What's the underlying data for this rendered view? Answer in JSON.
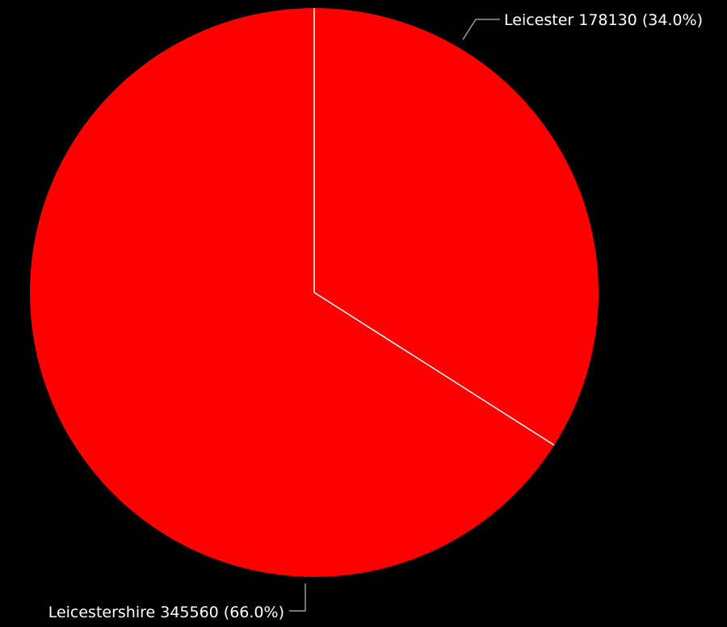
{
  "chart_data": {
    "type": "pie",
    "slices": [
      {
        "label": "Leicester",
        "value": 178130,
        "percent": 34.0,
        "display": "Leicester 178130 (34.0%)",
        "color": "#ff0000"
      },
      {
        "label": "Leicestershire",
        "value": 345560,
        "percent": 66.0,
        "display": "Leicestershire 345560 (66.0%)",
        "color": "#ff0000"
      }
    ],
    "start": "12 o'clock",
    "direction": "clockwise",
    "separator_color": "#ffffff",
    "background": "#000000",
    "label_color": "#ffffff"
  }
}
